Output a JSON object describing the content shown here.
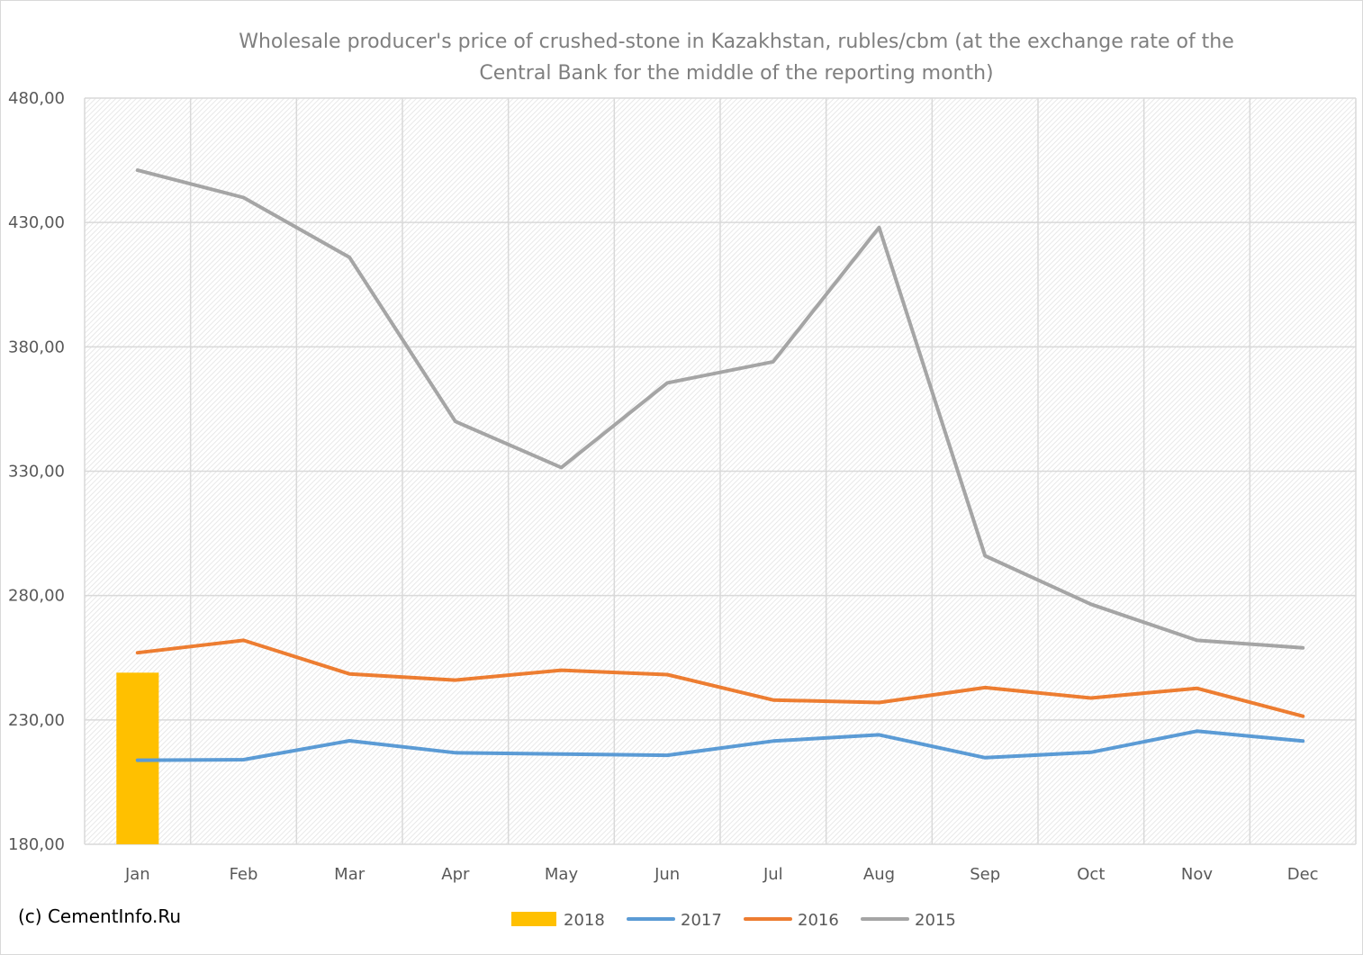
{
  "copyright": "(c) CementInfo.Ru",
  "chart_data": {
    "type": "line",
    "title_lines": [
      "Wholesale producer's price of crushed-stone in Kazakhstan, rubles/cbm (at the exchange rate of the",
      "Central Bank for the middle of the reporting month)"
    ],
    "xlabel": "",
    "ylabel": "",
    "categories": [
      "Jan",
      "Feb",
      "Mar",
      "Apr",
      "May",
      "Jun",
      "Jul",
      "Aug",
      "Sep",
      "Oct",
      "Nov",
      "Dec"
    ],
    "ylim": [
      180,
      480
    ],
    "yticks": [
      180,
      230,
      280,
      330,
      380,
      430,
      480
    ],
    "ytick_labels": [
      "180,00",
      "230,00",
      "280,00",
      "330,00",
      "380,00",
      "430,00",
      "480,00"
    ],
    "grid": true,
    "legend_position": "bottom",
    "series": [
      {
        "name": "2018",
        "type": "bar",
        "color": "#ffc000",
        "values": [
          249.0,
          null,
          null,
          null,
          null,
          null,
          null,
          null,
          null,
          null,
          null,
          null
        ]
      },
      {
        "name": "2017",
        "type": "line",
        "color": "#5b9bd5",
        "values": [
          213.8,
          214.0,
          221.6,
          216.8,
          216.3,
          215.8,
          221.5,
          224.0,
          214.8,
          217.0,
          225.5,
          221.5
        ]
      },
      {
        "name": "2016",
        "type": "line",
        "color": "#ed7d31",
        "values": [
          257.0,
          262.0,
          248.5,
          246.0,
          250.0,
          248.2,
          238.0,
          237.0,
          243.0,
          238.8,
          242.7,
          231.5
        ]
      },
      {
        "name": "2015",
        "type": "line",
        "color": "#a5a5a5",
        "values": [
          451.0,
          440.0,
          416.0,
          350.0,
          331.5,
          365.5,
          374.0,
          428.0,
          296.0,
          276.5,
          262.0,
          259.0
        ]
      }
    ]
  }
}
